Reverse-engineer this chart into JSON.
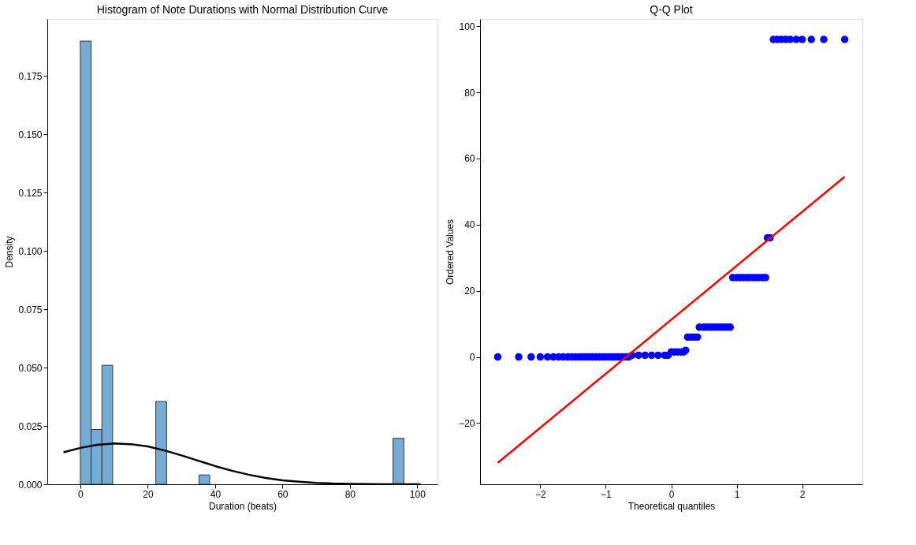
{
  "chart_data": [
    {
      "type": "histogram",
      "title": "Histogram of Note Durations with Normal Distribution Curve",
      "xlabel": "Duration (beats)",
      "ylabel": "Density",
      "bins": [
        0,
        3.2,
        6.4,
        9.6,
        12.8,
        16,
        19.2,
        22.4,
        25.6,
        28.8,
        32,
        35.2,
        38.4,
        41.6,
        44.8,
        48,
        51.2,
        54.4,
        57.6,
        60.8,
        64,
        67.2,
        70.4,
        73.6,
        76.8,
        80,
        83.2,
        86.4,
        89.6,
        92.8,
        96
      ],
      "values": [
        0.19,
        0.0235,
        0.051,
        0,
        0,
        0,
        0,
        0.0355,
        0,
        0,
        0,
        0.004,
        0,
        0,
        0,
        0,
        0,
        0,
        0,
        0,
        0,
        0,
        0,
        0,
        0,
        0,
        0,
        0,
        0,
        0.0197
      ],
      "color": "#76acd3",
      "series": [
        {
          "type": "line",
          "color": "#000000",
          "x": [
            -5,
            0,
            5,
            10,
            15,
            20,
            25,
            30,
            35,
            40,
            45,
            50,
            55,
            60,
            65,
            70,
            75,
            80,
            85,
            90,
            95,
            101
          ],
          "values": [
            0.0137,
            0.0156,
            0.0169,
            0.0175,
            0.0172,
            0.0162,
            0.0145,
            0.0124,
            0.0101,
            0.0078,
            0.0058,
            0.0041,
            0.0027,
            0.0017,
            0.0011,
            0.0006,
            0.0003,
            0.0002,
            0.0001,
            0.0,
            0.0,
            0.0
          ]
        }
      ],
      "xlim": [
        -9.8,
        106
      ],
      "xticks": [
        0,
        20,
        40,
        60,
        80,
        100
      ],
      "ylim": [
        0,
        0.1995
      ],
      "yticks": [
        {
          "value": 0,
          "label": "0.000"
        },
        0.025,
        {
          "value": 0.05,
          "label": "0.050"
        },
        0.075,
        {
          "value": 0.1,
          "label": "0.100"
        },
        0.125,
        {
          "value": 0.15,
          "label": "0.150"
        },
        0.175
      ],
      "grid": false
    },
    {
      "type": "scatter",
      "title": "Q-Q Plot",
      "xlabel": "Theoretical quantiles",
      "ylabel": "Ordered Values",
      "series": [
        {
          "type": "scatter",
          "color": "#0000ff",
          "x": [
            -2.65,
            -2.33,
            -2.14,
            -2.0,
            -1.89,
            -1.8,
            -1.72,
            -1.65,
            -1.58,
            -1.52,
            -1.46,
            -1.4,
            -1.35,
            -1.3,
            -1.25,
            -1.2,
            -1.15,
            -1.1,
            -1.05,
            -1.0,
            -0.95,
            -0.9,
            -0.85,
            -0.8,
            -0.75,
            -0.7,
            -0.65,
            -0.6,
            -0.5,
            -0.4,
            -0.3,
            -0.2,
            -0.1,
            -0.05,
            0.0,
            0.05,
            0.1,
            0.15,
            0.19,
            0.22,
            0.25,
            0.3,
            0.35,
            0.4,
            0.43,
            0.5,
            0.55,
            0.6,
            0.65,
            0.7,
            0.75,
            0.8,
            0.85,
            0.9,
            0.94,
            1.0,
            1.05,
            1.1,
            1.15,
            1.2,
            1.25,
            1.3,
            1.35,
            1.4,
            1.44,
            1.47,
            1.51,
            1.56,
            1.62,
            1.68,
            1.75,
            1.82,
            1.91,
            2.0,
            2.14,
            2.33,
            2.65
          ],
          "values": [
            0,
            0,
            0,
            0,
            0,
            0,
            0,
            0,
            0,
            0,
            0,
            0,
            0,
            0,
            0,
            0,
            0,
            0,
            0,
            0,
            0,
            0,
            0,
            0,
            0,
            0,
            0,
            0.5,
            0.5,
            0.5,
            0.5,
            0.5,
            0.5,
            0.5,
            1.5,
            1.5,
            1.5,
            1.5,
            1.5,
            2,
            6,
            6,
            6,
            6,
            9,
            9,
            9,
            9,
            9,
            9,
            9,
            9,
            9,
            9,
            24,
            24,
            24,
            24,
            24,
            24,
            24,
            24,
            24,
            24,
            24,
            36,
            36,
            96,
            96,
            96,
            96,
            96,
            96,
            96,
            96,
            96,
            96
          ]
        },
        {
          "type": "line",
          "color": "#ff0000",
          "x": [
            -2.65,
            2.65
          ],
          "values": [
            -32,
            54.5
          ]
        }
      ],
      "xlim": [
        -2.92,
        2.92
      ],
      "xticks": [
        -2,
        -1,
        0,
        1,
        2
      ],
      "ylim": [
        -38.5,
        102.2
      ],
      "yticks": [
        -20,
        0,
        20,
        40,
        60,
        80,
        100
      ],
      "grid": false
    }
  ]
}
